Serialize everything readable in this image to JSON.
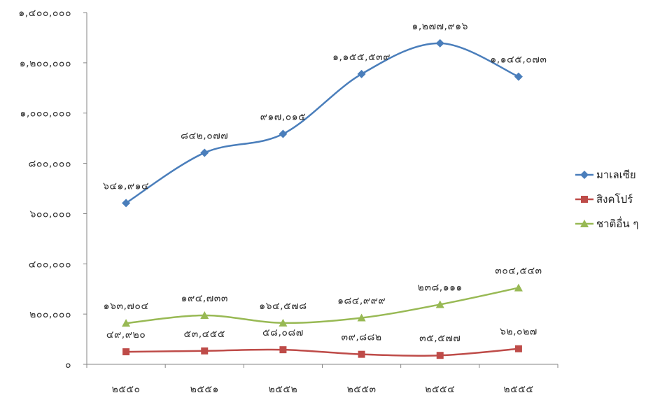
{
  "chart_data": {
    "type": "line",
    "categories": [
      "๒๕๕๐",
      "๒๕๕๑",
      "๒๕๕๒",
      "๒๕๕๓",
      "๒๕๕๔",
      "๒๕๕๕"
    ],
    "ylim": [
      0,
      1400000
    ],
    "yticks": [
      0,
      200000,
      400000,
      600000,
      800000,
      1000000,
      1200000,
      1400000
    ],
    "ytick_labels": [
      "๐",
      "๒๐๐,๐๐๐",
      "๔๐๐,๐๐๐",
      "๖๐๐,๐๐๐",
      "๘๐๐,๐๐๐",
      "๑,๐๐๐,๐๐๐",
      "๑,๒๐๐,๐๐๐",
      "๑,๔๐๐,๐๐๐"
    ],
    "grid": false,
    "legend_position": "right",
    "series": [
      {
        "name": "มาเลเซีย",
        "color": "#4A7EBB",
        "marker": "diamond",
        "values": [
          641914,
          842077,
          917015,
          1155539,
          1277916,
          1145073
        ],
        "labels": [
          "๖๔๑,๙๑๔",
          "๘๔๒,๐๗๗",
          "๙๑๗,๐๑๕",
          "๑,๑๕๕,๕๓๙",
          "๑,๒๗๗,๙๑๖",
          "๑,๑๔๕,๐๗๓"
        ]
      },
      {
        "name": "สิงคโปร์",
        "color": "#BE4B48",
        "marker": "square",
        "values": [
          49920,
          53455,
          58087,
          39882,
          35577,
          62027
        ],
        "labels": [
          "๔๙,๙๒๐",
          "๕๓,๔๕๕",
          "๕๘,๐๘๗",
          "๓๙,๘๘๒",
          "๓๕,๕๗๗",
          "๖๒,๐๒๗"
        ]
      },
      {
        "name": "ชาติอื่น ๆ",
        "color": "#98B954",
        "marker": "triangle",
        "values": [
          163704,
          194733,
          164578,
          184999,
          238111,
          304543
        ],
        "labels": [
          "๑๖๓,๗๐๔",
          "๑๙๔,๗๓๓",
          "๑๖๔,๕๗๘",
          "๑๘๔,๙๙๙",
          "๒๓๘,๑๑๑",
          "๓๐๔,๕๔๓"
        ]
      }
    ]
  }
}
